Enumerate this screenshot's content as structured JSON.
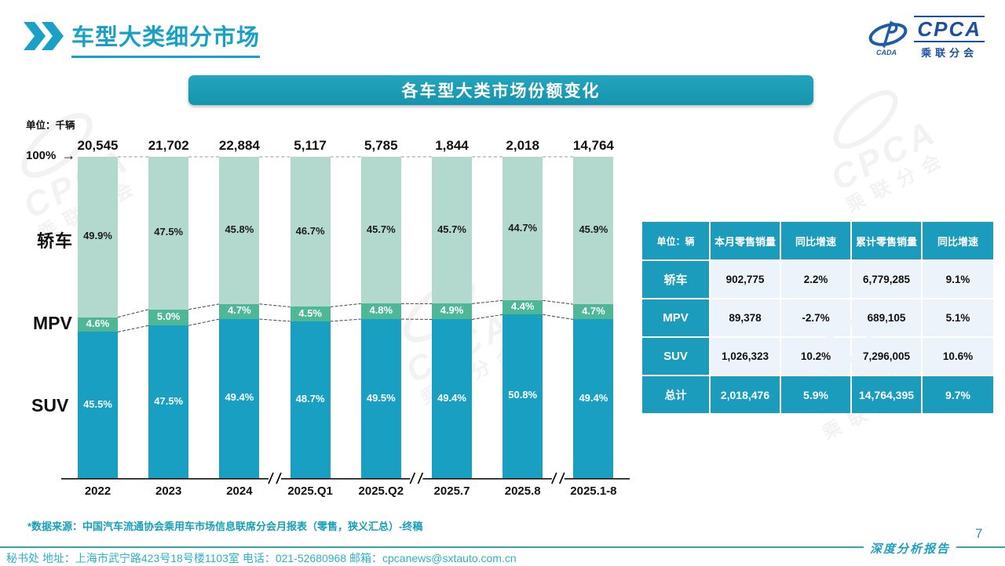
{
  "page": {
    "title": "车型大类细分市场",
    "page_number": "7",
    "report_type": "深度分析报告",
    "source_note": "*数据来源：中国汽车流通协会乘用车市场信息联席分会月报表（零售，狭义汇总）-终稿",
    "contact": "秘书处  地址：上海市武宁路423号18号楼1103室 电话：021-52680968  邮箱：cpcanews@sxtauto.com.cn"
  },
  "logo": {
    "cpca": "CPCA",
    "cada": "CADA",
    "subtitle": "乘联分会"
  },
  "watermark": {
    "line1": "CPCA",
    "line2": "乘联分会"
  },
  "banner": {
    "title": "各车型大类市场份额变化"
  },
  "chart": {
    "unit_label": "单位：千辆",
    "axis_100_label": "100%",
    "arrow": "→",
    "category_labels": {
      "sedan": "轿车",
      "mpv": "MPV",
      "suv": "SUV"
    }
  },
  "chart_data": {
    "type": "bar",
    "stacked": true,
    "normalized_to_100pct": true,
    "title": "各车型大类市场份额变化",
    "unit": "千辆",
    "ylim": [
      0,
      100
    ],
    "grid": false,
    "categories": [
      "2022",
      "2023",
      "2024",
      "2025.Q1",
      "2025.Q2",
      "2025.7",
      "2025.8",
      "2025.1-8"
    ],
    "totals": [
      "20,545",
      "21,702",
      "22,884",
      "5,117",
      "5,785",
      "1,844",
      "2,018",
      "14,764"
    ],
    "series": [
      {
        "key": "sedan",
        "name": "轿车",
        "color": "#b3d9cf",
        "values": [
          49.9,
          47.5,
          45.8,
          46.7,
          45.7,
          45.7,
          44.7,
          45.9
        ]
      },
      {
        "key": "mpv",
        "name": "MPV",
        "color": "#4eb795",
        "values": [
          4.6,
          5.0,
          4.7,
          4.5,
          4.8,
          4.9,
          4.4,
          4.7
        ]
      },
      {
        "key": "suv",
        "name": "SUV",
        "color": "#189fc1",
        "values": [
          45.5,
          47.5,
          49.4,
          48.7,
          49.5,
          49.4,
          50.8,
          49.4
        ]
      }
    ],
    "axis_breaks_after": [
      "2024",
      "2025.Q2",
      "2025.8"
    ]
  },
  "table": {
    "unit_header": "单位：辆",
    "columns": [
      "本月零售销量",
      "同比增速",
      "累计零售销量",
      "同比增速"
    ],
    "rows": [
      {
        "label": "轿车",
        "cells": [
          "902,775",
          "2.2%",
          "6,779,285",
          "9.1%"
        ],
        "total": false
      },
      {
        "label": "MPV",
        "cells": [
          "89,378",
          "-2.7%",
          "689,105",
          "5.1%"
        ],
        "total": false
      },
      {
        "label": "SUV",
        "cells": [
          "1,026,323",
          "10.2%",
          "7,296,005",
          "10.6%"
        ],
        "total": false
      },
      {
        "label": "总计",
        "cells": [
          "2,018,476",
          "5.9%",
          "14,764,395",
          "9.7%"
        ],
        "total": true
      }
    ]
  },
  "colors": {
    "accent_teal": "#18a0c6",
    "banner_teal": "#1b9cbc",
    "table_header": "#1b9cbc",
    "table_cell_bg": "#edf3fa",
    "sedan": "#b3d9cf",
    "mpv": "#4eb795",
    "suv": "#189fc1",
    "logo_blue": "#1c4f9f"
  }
}
